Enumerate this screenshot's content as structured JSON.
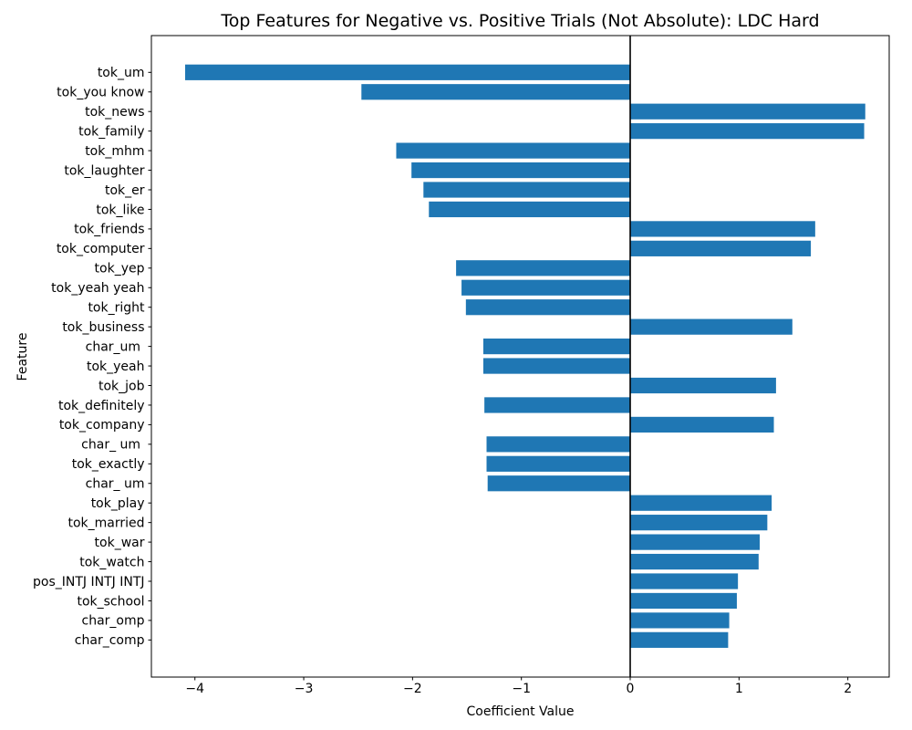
{
  "chart_data": {
    "type": "bar",
    "orientation": "horizontal",
    "title": "Top Features for Negative vs. Positive Trials (Not Absolute): LDC Hard",
    "xlabel": "Coefficient Value",
    "ylabel": "Feature",
    "bar_color": "#1f77b4",
    "axis_color": "#000000",
    "zero_line": true,
    "grid": false,
    "legend": null,
    "xlim": [
      -4.4,
      2.38
    ],
    "xticks": [
      -4,
      -3,
      -2,
      -1,
      0,
      1,
      2
    ],
    "xtick_labels": [
      "−4",
      "−3",
      "−2",
      "−1",
      "0",
      "1",
      "2"
    ],
    "categories": [
      "tok_um",
      "tok_you know",
      "tok_news",
      "tok_family",
      "tok_mhm",
      "tok_laughter",
      "tok_er",
      "tok_like",
      "tok_friends",
      "tok_computer",
      "tok_yep",
      "tok_yeah yeah",
      "tok_right",
      "tok_business",
      "char_um ",
      "tok_yeah",
      "tok_job",
      "tok_definitely",
      "tok_company",
      "char_ um ",
      "tok_exactly",
      "char_ um",
      "tok_play",
      "tok_married",
      "tok_war",
      "tok_watch",
      "pos_INTJ INTJ INTJ",
      "tok_school",
      "char_omp",
      "char_comp"
    ],
    "values": [
      -4.09,
      -2.47,
      2.16,
      2.15,
      -2.15,
      -2.01,
      -1.9,
      -1.85,
      1.7,
      1.66,
      -1.6,
      -1.55,
      -1.51,
      1.49,
      -1.35,
      -1.35,
      1.34,
      -1.34,
      1.32,
      -1.32,
      -1.32,
      -1.31,
      1.3,
      1.26,
      1.19,
      1.18,
      0.99,
      0.98,
      0.91,
      0.9
    ]
  }
}
